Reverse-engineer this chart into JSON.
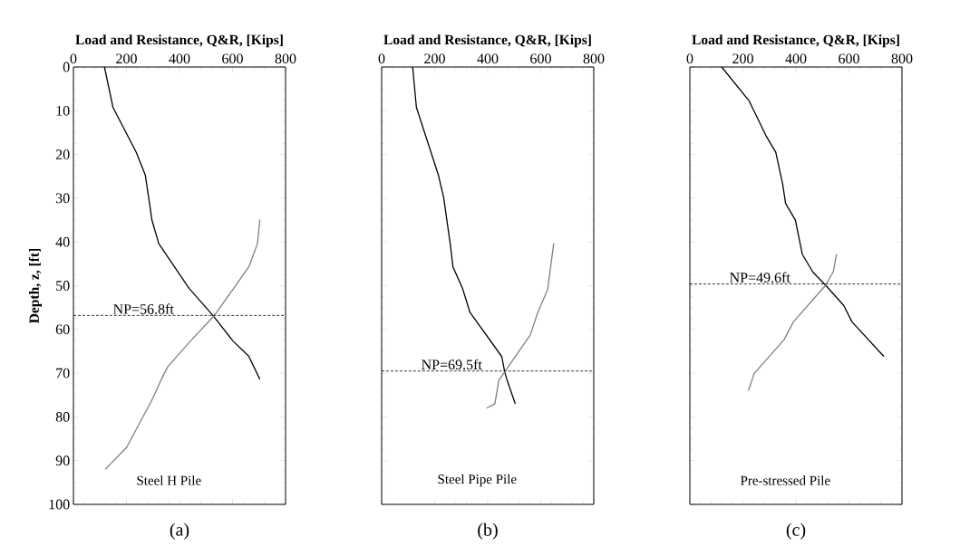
{
  "chart_data": [
    {
      "type": "line",
      "xlabel": "Load and Resistance, Q&R, [Kips]",
      "ylabel": "Depth, z, [ft]",
      "xlim": [
        0,
        800
      ],
      "xticks": [
        0,
        200,
        400,
        600,
        800
      ],
      "ylim": [
        100,
        0
      ],
      "yticks": [
        0,
        10,
        20,
        30,
        40,
        50,
        60,
        70,
        80,
        90,
        100
      ],
      "series": [
        {
          "color": "#000000",
          "x": [
            117,
            149,
            237,
            271,
            288,
            296,
            322,
            436,
            529,
            601,
            661,
            703
          ],
          "values": [
            0,
            9.2,
            19.5,
            24.7,
            31.6,
            35,
            40.4,
            50.6,
            57,
            62.6,
            66.1,
            71.4
          ]
        },
        {
          "color": "#808080",
          "x": [
            703,
            694,
            663,
            601,
            529,
            442,
            356,
            333,
            294,
            200,
            120
          ],
          "values": [
            34.9,
            40.4,
            45.5,
            50.9,
            57,
            62.6,
            68.5,
            71.2,
            76.4,
            87,
            92
          ]
        }
      ],
      "ref_lines": [
        {
          "axis": "y",
          "value": 56.8,
          "label": "NP=56.8ft",
          "color": "#000000",
          "line_style": "dashed"
        }
      ],
      "annotations": [
        "Steel H Pile",
        "(a)"
      ]
    },
    {
      "type": "line",
      "xlabel": "Load and Resistance, Q&R, [Kips]",
      "xlim": [
        0,
        800
      ],
      "xticks": [
        0,
        200,
        400,
        600,
        800
      ],
      "ylim": [
        100,
        0
      ],
      "yticks": [
        0,
        10,
        20,
        30,
        40,
        50,
        60,
        70,
        80,
        90,
        100
      ],
      "tick_labels": "x",
      "series": [
        {
          "color": "#000000",
          "x": [
            117,
            131,
            214,
            234,
            259,
            269,
            305,
            333,
            453,
            464,
            473,
            504
          ],
          "values": [
            0,
            9.2,
            24.7,
            29.9,
            40.6,
            45.7,
            50.6,
            56.1,
            66.2,
            69.7,
            71.6,
            77
          ]
        },
        {
          "color": "#808080",
          "x": [
            649,
            626,
            589,
            561,
            464,
            442,
            427,
            396
          ],
          "values": [
            40.3,
            50.9,
            56.1,
            61.2,
            69.7,
            71.6,
            77,
            78
          ]
        }
      ],
      "ref_lines": [
        {
          "axis": "y",
          "value": 69.5,
          "label": "NP=69.5ft",
          "color": "#000000",
          "line_style": "dashed"
        }
      ],
      "annotations": [
        "Steel Pipe Pile",
        "(b)"
      ]
    },
    {
      "type": "line",
      "xlabel": "Load and Resistance, Q&R, [Kips]",
      "xlim": [
        0,
        800
      ],
      "xticks": [
        0,
        200,
        400,
        600,
        800
      ],
      "ylim": [
        100,
        0
      ],
      "yticks": [
        0,
        10,
        20,
        30,
        40,
        50,
        60,
        70,
        80,
        90,
        100
      ],
      "tick_labels": "x",
      "series": [
        {
          "color": "#000000",
          "x": [
            120,
            224,
            287,
            324,
            350,
            361,
            398,
            424,
            464,
            512,
            580,
            612,
            732
          ],
          "values": [
            0,
            7.8,
            15.7,
            19.5,
            26.8,
            31.2,
            35,
            42.8,
            46.9,
            49.9,
            54.5,
            58.3,
            66.2
          ]
        },
        {
          "color": "#808080",
          "x": [
            553,
            541,
            512,
            390,
            356,
            242,
            221
          ],
          "values": [
            42.8,
            46.8,
            49.9,
            58.3,
            62.3,
            70.1,
            74
          ]
        }
      ],
      "ref_lines": [
        {
          "axis": "y",
          "value": 49.6,
          "label": "NP=49.6ft",
          "color": "#000000",
          "line_style": "dashed"
        }
      ],
      "annotations": [
        "Pre-stressed  Pile",
        "(c)"
      ]
    }
  ]
}
